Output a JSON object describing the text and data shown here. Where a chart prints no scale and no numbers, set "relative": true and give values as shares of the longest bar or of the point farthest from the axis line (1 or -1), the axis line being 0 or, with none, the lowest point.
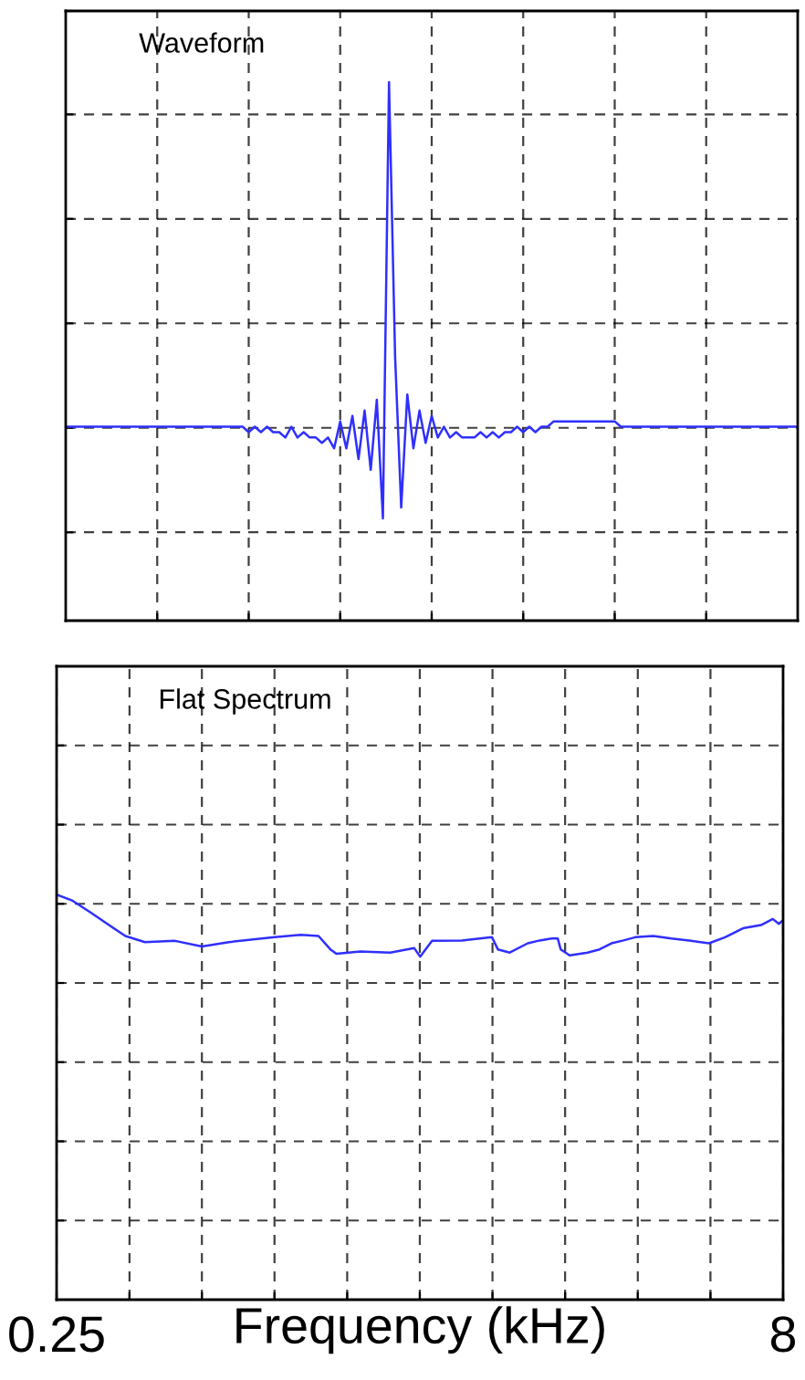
{
  "chart_data": [
    {
      "type": "line",
      "title": "Waveform",
      "relative": true,
      "grid": true,
      "tick_labels": false,
      "line_style": "solid",
      "categories": [
        null,
        null,
        null,
        null,
        null,
        null,
        null,
        null,
        null,
        null,
        null,
        null,
        null,
        null,
        null,
        null,
        null,
        null,
        null,
        null,
        null,
        null,
        null,
        null,
        null,
        null,
        null,
        null,
        null,
        null,
        null,
        null,
        null,
        null,
        null,
        null,
        null,
        null,
        null,
        null,
        null,
        null,
        null,
        null,
        null,
        null,
        null,
        null,
        null,
        null,
        null,
        null,
        null,
        null,
        null,
        null,
        null,
        null,
        null,
        null,
        null,
        null,
        null,
        null,
        null,
        null,
        null,
        null,
        null,
        null,
        null,
        null,
        null,
        null,
        null,
        null,
        null,
        null,
        null,
        null,
        null,
        null,
        null,
        null,
        null,
        null,
        null,
        null,
        null,
        null,
        null,
        null,
        null,
        null,
        null,
        null,
        null,
        null,
        null,
        null,
        null,
        null,
        null,
        null,
        null,
        null,
        null,
        null,
        null,
        null,
        null,
        null,
        null,
        null,
        null,
        null,
        null,
        null,
        null,
        null,
        null
      ],
      "series": [
        {
          "color": "#2f2fff",
          "values": [
            0.36,
            0.36,
            0.36,
            0.36,
            0.36,
            0.36,
            0.36,
            0.36,
            0.36,
            0.36,
            0.36,
            0.36,
            0.36,
            0.36,
            0.36,
            0.36,
            0.36,
            0.36,
            0.36,
            0.36,
            0.36,
            0.36,
            0.36,
            0.36,
            0.36,
            0.36,
            0.36,
            0.36,
            0.36,
            0.36,
            0.35,
            0.36,
            0.35,
            0.36,
            0.35,
            0.35,
            0.34,
            0.36,
            0.34,
            0.35,
            0.34,
            0.34,
            0.33,
            0.34,
            0.32,
            0.37,
            0.32,
            0.38,
            0.3,
            0.39,
            0.28,
            0.41,
            0.19,
            1.0,
            0.49,
            0.21,
            0.42,
            0.32,
            0.39,
            0.33,
            0.38,
            0.34,
            0.36,
            0.34,
            0.35,
            0.34,
            0.34,
            0.34,
            0.35,
            0.34,
            0.35,
            0.34,
            0.35,
            0.35,
            0.36,
            0.35,
            0.36,
            0.35,
            0.36,
            0.36,
            0.37,
            0.37,
            0.37,
            0.37,
            0.37,
            0.37,
            0.37,
            0.37,
            0.37,
            0.37,
            0.37,
            0.36,
            0.36,
            0.36,
            0.36,
            0.36,
            0.36,
            0.36,
            0.36,
            0.36,
            0.36,
            0.36,
            0.36,
            0.36,
            0.36,
            0.36,
            0.36,
            0.36,
            0.36,
            0.36,
            0.36,
            0.36,
            0.36,
            0.36,
            0.36,
            0.36,
            0.36,
            0.36,
            0.36,
            0.36,
            0.36
          ]
        }
      ]
    },
    {
      "type": "line",
      "title": "Flat Spectrum",
      "xlabel": "Frequency (kHz)",
      "relative": true,
      "grid": true,
      "tick_labels": "x",
      "log": "x",
      "line_style": "solid",
      "xlim": [
        0.25,
        8
      ],
      "xticks": [
        0.25,
        {
          "value": 0.354,
          "label": null
        },
        {
          "value": 0.5,
          "label": null
        },
        {
          "value": 0.707,
          "label": null
        },
        {
          "value": 1,
          "label": null
        },
        {
          "value": 1.414,
          "label": null
        },
        {
          "value": 2,
          "label": null
        },
        {
          "value": 2.828,
          "label": null
        },
        {
          "value": 4,
          "label": null
        },
        {
          "value": 5.657,
          "label": null
        },
        8
      ],
      "x": [
        0.25,
        0.27,
        0.295,
        0.321,
        0.347,
        0.381,
        0.44,
        0.5,
        0.569,
        0.708,
        0.801,
        0.872,
        0.923,
        0.95,
        1.065,
        1.228,
        1.377,
        1.416,
        1.499,
        1.729,
        1.884,
        1.995,
        2.052,
        2.172,
        2.367,
        2.506,
        2.652,
        2.73,
        2.769,
        2.89,
        3.148,
        3.333,
        3.528,
        3.735,
        3.955,
        4.307,
        4.692,
        5.112,
        5.617,
        6.068,
        6.607,
        7.2,
        7.617,
        7.84,
        8.0
      ],
      "series": [
        {
          "color": "#2f2fff",
          "values": [
            1.0,
            0.985,
            0.955,
            0.925,
            0.898,
            0.883,
            0.886,
            0.872,
            0.883,
            0.895,
            0.901,
            0.898,
            0.865,
            0.854,
            0.86,
            0.857,
            0.868,
            0.847,
            0.886,
            0.887,
            0.892,
            0.895,
            0.865,
            0.857,
            0.88,
            0.887,
            0.892,
            0.892,
            0.865,
            0.85,
            0.857,
            0.865,
            0.88,
            0.887,
            0.895,
            0.898,
            0.892,
            0.887,
            0.88,
            0.895,
            0.917,
            0.925,
            0.94,
            0.928,
            0.937
          ]
        }
      ]
    }
  ]
}
